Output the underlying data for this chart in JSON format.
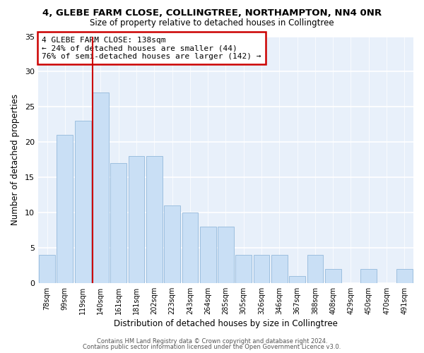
{
  "title": "4, GLEBE FARM CLOSE, COLLINGTREE, NORTHAMPTON, NN4 0NR",
  "subtitle": "Size of property relative to detached houses in Collingtree",
  "xlabel": "Distribution of detached houses by size in Collingtree",
  "ylabel": "Number of detached properties",
  "bar_labels": [
    "78sqm",
    "99sqm",
    "119sqm",
    "140sqm",
    "161sqm",
    "181sqm",
    "202sqm",
    "223sqm",
    "243sqm",
    "264sqm",
    "285sqm",
    "305sqm",
    "326sqm",
    "346sqm",
    "367sqm",
    "388sqm",
    "408sqm",
    "429sqm",
    "450sqm",
    "470sqm",
    "491sqm"
  ],
  "bar_values": [
    4,
    21,
    23,
    27,
    17,
    18,
    18,
    11,
    10,
    8,
    8,
    4,
    4,
    4,
    1,
    4,
    2,
    0,
    2,
    0,
    2
  ],
  "bar_color": "#c9dff5",
  "bar_edge_color": "#9dbfdf",
  "vline_color": "#cc0000",
  "annotation_title": "4 GLEBE FARM CLOSE: 138sqm",
  "annotation_line1": "← 24% of detached houses are smaller (44)",
  "annotation_line2": "76% of semi-detached houses are larger (142) →",
  "annotation_box_color": "#ffffff",
  "annotation_box_edge": "#cc0000",
  "ylim": [
    0,
    35
  ],
  "yticks": [
    0,
    5,
    10,
    15,
    20,
    25,
    30,
    35
  ],
  "footer1": "Contains HM Land Registry data © Crown copyright and database right 2024.",
  "footer2": "Contains public sector information licensed under the Open Government Licence v3.0.",
  "bg_color": "#ffffff",
  "plot_bg_color": "#e8f0fa"
}
